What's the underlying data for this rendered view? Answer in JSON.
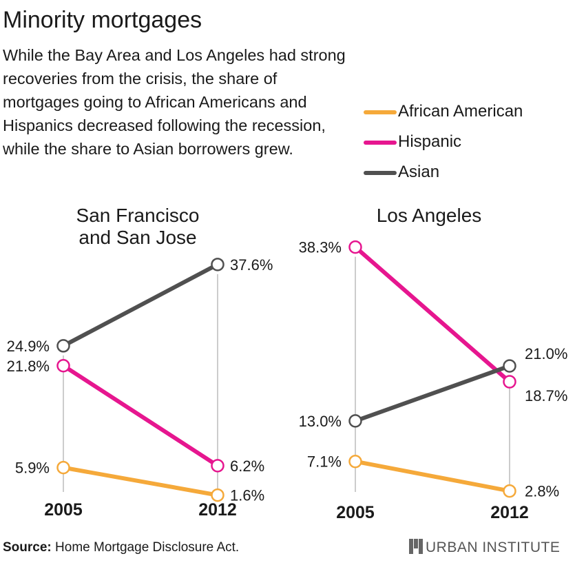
{
  "header": {
    "title": "Minority mortgages",
    "subtitle": "While the Bay Area and Los Angeles had strong recoveries from the crisis, the share of mortgages going to African Americans and Hispanics decreased following the recession, while the share to Asian borrowers grew."
  },
  "legend": [
    {
      "label": "African American",
      "color": "#f5a93a"
    },
    {
      "label": "Hispanic",
      "color": "#e6168f"
    },
    {
      "label": "Asian",
      "color": "#505050"
    }
  ],
  "chart_data": [
    {
      "type": "line",
      "title_lines": [
        "San Francisco",
        "and San Jose"
      ],
      "x": [
        "2005",
        "2012"
      ],
      "series": [
        {
          "name": "Asian",
          "values": [
            24.9,
            37.6
          ],
          "labels": [
            "24.9%",
            "37.6%"
          ],
          "color": "#505050"
        },
        {
          "name": "Hispanic",
          "values": [
            21.8,
            6.2
          ],
          "labels": [
            "21.8%",
            "6.2%"
          ],
          "color": "#e6168f"
        },
        {
          "name": "African American",
          "values": [
            5.9,
            1.6
          ],
          "labels": [
            "5.9%",
            "1.6%"
          ],
          "color": "#f5a93a"
        }
      ]
    },
    {
      "type": "line",
      "title_lines": [
        "Los Angeles"
      ],
      "x": [
        "2005",
        "2012"
      ],
      "series": [
        {
          "name": "Hispanic",
          "values": [
            38.3,
            18.7
          ],
          "labels": [
            "38.3%",
            "18.7%"
          ],
          "color": "#e6168f"
        },
        {
          "name": "Asian",
          "values": [
            13.0,
            21.0
          ],
          "labels": [
            "13.0%",
            "21.0%"
          ],
          "color": "#505050"
        },
        {
          "name": "African American",
          "values": [
            7.1,
            2.8
          ],
          "labels": [
            "7.1%",
            "2.8%"
          ],
          "color": "#f5a93a"
        }
      ]
    }
  ],
  "footer": {
    "source_label": "Source:",
    "source_text": "Home Mortgage Disclosure Act.",
    "brand": "URBAN INSTITUTE"
  }
}
